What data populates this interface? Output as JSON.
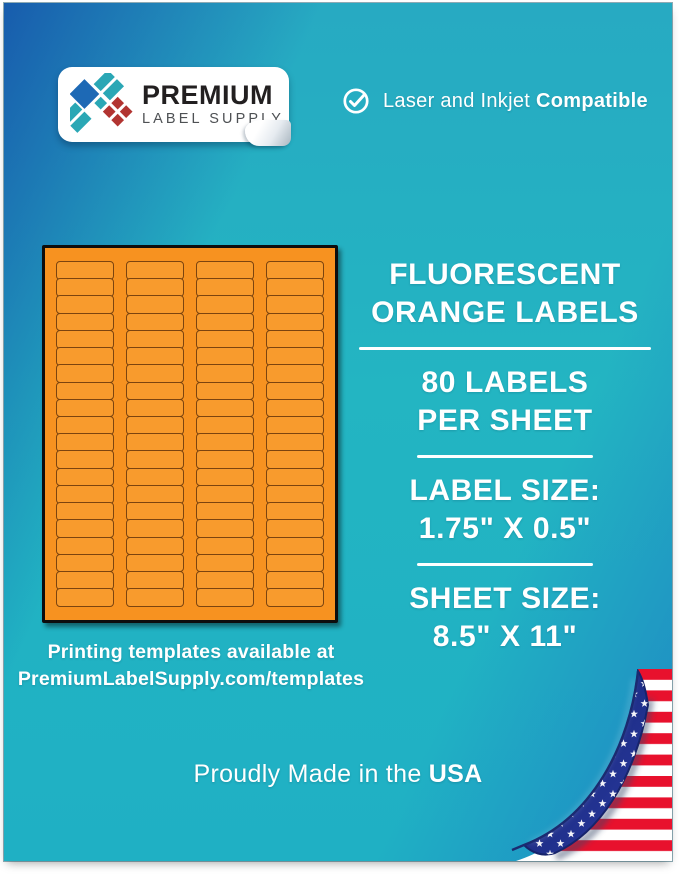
{
  "brand": {
    "name_line1": "PREMIUM",
    "name_line2": "LABEL SUPPLY"
  },
  "header": {
    "compatibility_prefix": "Laser and Inkjet ",
    "compatibility_bold": "Compatible"
  },
  "product": {
    "title_line1": "FLUORESCENT",
    "title_line2": "ORANGE LABELS",
    "count_line1": "80 LABELS",
    "count_line2": "PER SHEET",
    "label_size_heading": "LABEL SIZE:",
    "label_size_value": "1.75\" X 0.5\"",
    "sheet_size_heading": "SHEET SIZE:",
    "sheet_size_value": "8.5\" X 11\""
  },
  "sheet_preview": {
    "columns": 4,
    "rows": 20,
    "total_labels": 80,
    "sheet_color": "#f79220",
    "label_color": "#f89b2d",
    "label_border_color": "#7c440f"
  },
  "templates_note": {
    "line1": "Printing templates available at",
    "line2": "PremiumLabelSupply.com/templates"
  },
  "footer": {
    "made_in_prefix": "Proudly Made in the ",
    "made_in_bold": "USA"
  },
  "colors": {
    "background_teal": "#23b5c2",
    "background_blue": "#1758ac",
    "text": "#ffffff",
    "flag_red": "#e8112d",
    "flag_navy": "#1d2d86",
    "logo_blue": "#1d69b5",
    "logo_teal": "#2aa7b5",
    "logo_red": "#b23431"
  }
}
